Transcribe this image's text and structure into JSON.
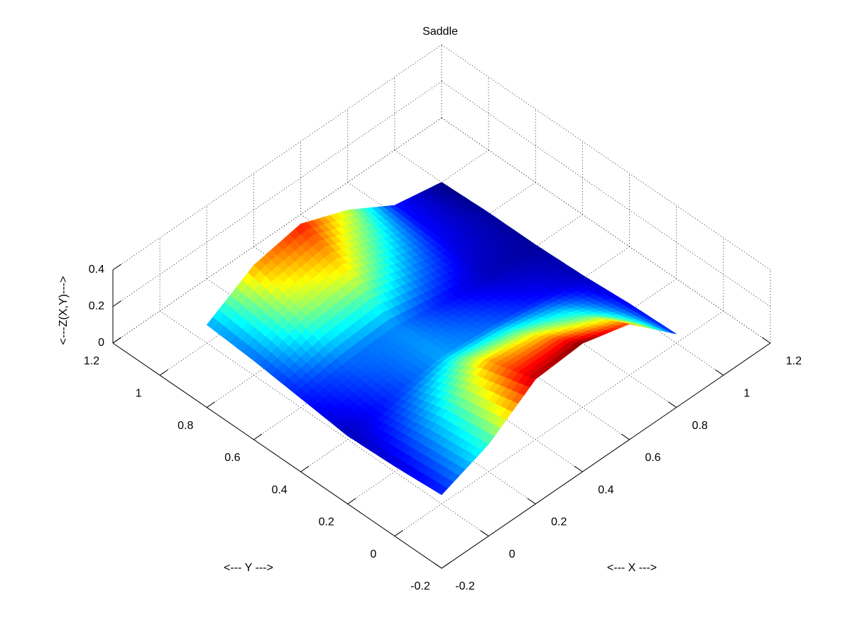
{
  "chart_data": {
    "type": "surface",
    "title": "Saddle",
    "xlabel": "<--- X --->",
    "ylabel": "<--- Y --->",
    "zlabel": "<---Z(X,Y)--->",
    "x": [
      0,
      0.2,
      0.4,
      0.6,
      0.8,
      1.0
    ],
    "y": [
      0,
      0.2,
      0.4,
      0.6,
      0.8,
      1.0
    ],
    "z": [
      [
        0.05,
        0.15,
        0.33,
        0.35,
        0.28,
        0.05
      ],
      [
        0.03,
        0.12,
        0.25,
        0.22,
        0.15,
        0.04
      ],
      [
        0.02,
        0.06,
        0.1,
        0.08,
        0.05,
        0.02
      ],
      [
        0.05,
        0.08,
        0.09,
        0.05,
        0.02,
        0.01
      ],
      [
        0.08,
        0.18,
        0.22,
        0.12,
        0.04,
        0.01
      ],
      [
        0.1,
        0.25,
        0.3,
        0.2,
        0.05,
        0.0
      ]
    ],
    "colormap": "jet",
    "xlim": [
      -0.2,
      1.2
    ],
    "ylim": [
      -0.2,
      1.2
    ],
    "zlim": [
      0,
      0.4
    ],
    "xticks": [
      -0.2,
      0,
      0.2,
      0.4,
      0.6,
      0.8,
      1,
      1.2
    ],
    "yticks": [
      -0.2,
      0,
      0.2,
      0.4,
      0.6,
      0.8,
      1,
      1.2
    ],
    "zticks": [
      0,
      0.2,
      0.4
    ],
    "grid": true
  }
}
